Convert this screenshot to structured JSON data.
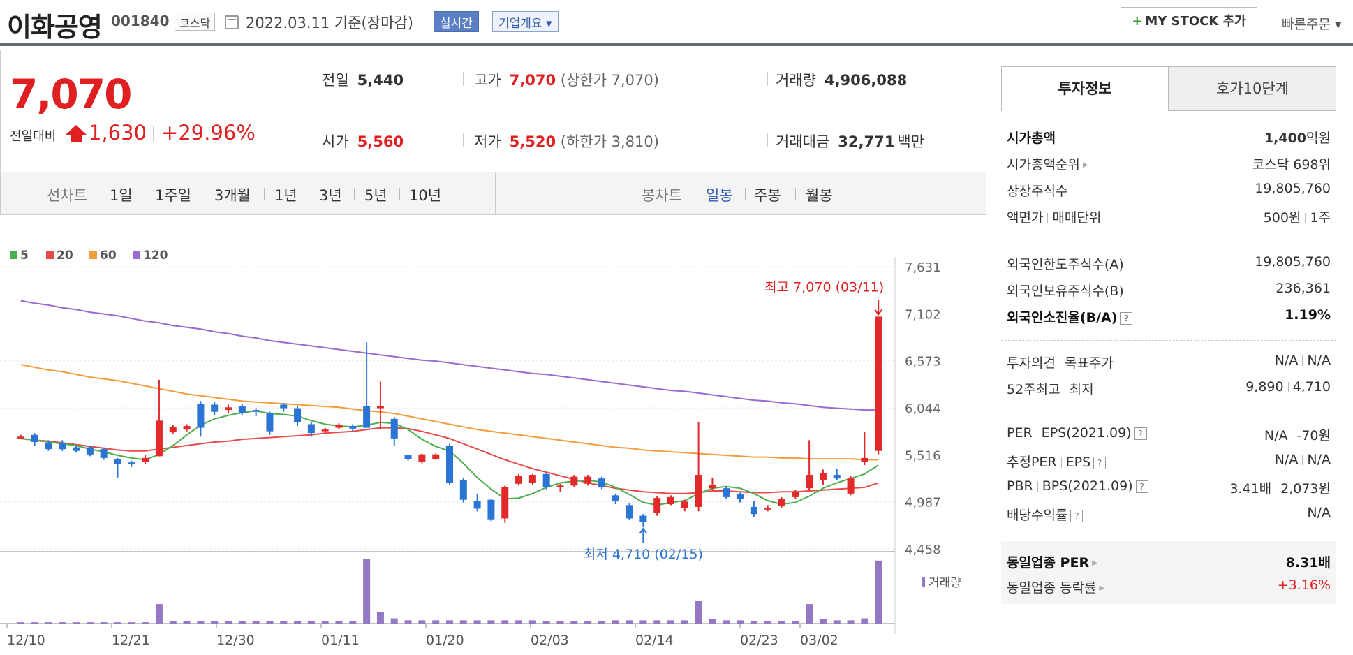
{
  "header": {
    "name": "이화공영",
    "code": "001840",
    "market": "코스닥",
    "date": "2022.03.11  기준(장마감)",
    "realtime": "실시간",
    "overview": "기업개요 ▾",
    "mystock": "MY STOCK 추가",
    "mystock_plus": "+",
    "quick_order": "빠른주문 ▾"
  },
  "price": {
    "current": "7,070",
    "diff_label": "전일대비",
    "diff": "1,630",
    "pct": "+29.96%"
  },
  "quotes": {
    "prev_label": "전일",
    "prev": "5,440",
    "high_label": "고가",
    "high": "7,070",
    "upper_limit": "(상한가 7,070)",
    "volume_label": "거래량",
    "volume": "4,906,088",
    "open_label": "시가",
    "open": "5,560",
    "low_label": "저가",
    "low": "5,520",
    "lower_limit": "(하한가 3,810)",
    "amount_label": "거래대금",
    "amount": "32,771",
    "amount_unit": "백만"
  },
  "chart_tabs": {
    "line_label": "선차트",
    "periods": [
      "1일",
      "1주일",
      "3개월",
      "1년",
      "3년",
      "5년",
      "10년"
    ],
    "candle_label": "봉차트",
    "candles": [
      "일봉",
      "주봉",
      "월봉"
    ]
  },
  "chart_data": {
    "type": "candlestick",
    "legend": [
      "5",
      "20",
      "60",
      "120"
    ],
    "ma_colors": [
      "#4caf50",
      "#e84a4a",
      "#f29c3a",
      "#9a6ad0"
    ],
    "y_ticks": [
      "7,631",
      "7,102",
      "6,573",
      "6,044",
      "5,516",
      "4,987",
      "4,458"
    ],
    "ylim": [
      4458,
      7631
    ],
    "x_ticks": [
      "12/10",
      "12/21",
      "12/30",
      "01/11",
      "01/20",
      "02/03",
      "02/14",
      "02/23",
      "03/02"
    ],
    "high_annotation": "최고 7,070 (03/11)",
    "low_annotation": "최저 4,710 (02/15)",
    "volume_label": "거래량",
    "candles": [
      [
        5700,
        5720,
        5690,
        5740
      ],
      [
        5740,
        5660,
        5620,
        5760
      ],
      [
        5650,
        5580,
        5560,
        5680
      ],
      [
        5640,
        5580,
        5560,
        5680
      ],
      [
        5600,
        5560,
        5540,
        5620
      ],
      [
        5600,
        5520,
        5500,
        5620
      ],
      [
        5580,
        5480,
        5460,
        5600
      ],
      [
        5470,
        5410,
        5260,
        5480
      ],
      [
        5430,
        5420,
        5380,
        5450
      ],
      [
        5440,
        5480,
        5410,
        5510
      ],
      [
        5500,
        5900,
        5500,
        6360
      ],
      [
        5770,
        5830,
        5750,
        5850
      ],
      [
        5800,
        5840,
        5780,
        5860
      ],
      [
        6090,
        5820,
        5720,
        6120
      ],
      [
        6080,
        6000,
        5960,
        6110
      ],
      [
        6020,
        6050,
        5980,
        6080
      ],
      [
        6060,
        5990,
        5960,
        6090
      ],
      [
        6020,
        6000,
        5950,
        6040
      ],
      [
        5980,
        5780,
        5740,
        6000
      ],
      [
        6080,
        6040,
        6000,
        6100
      ],
      [
        6040,
        5880,
        5840,
        6060
      ],
      [
        5860,
        5760,
        5720,
        5880
      ],
      [
        5780,
        5800,
        5760,
        5820
      ],
      [
        5820,
        5850,
        5800,
        5870
      ],
      [
        5840,
        5810,
        5780,
        5860
      ],
      [
        6060,
        5820,
        5820,
        6780
      ],
      [
        6040,
        6060,
        5800,
        6340
      ],
      [
        5920,
        5700,
        5620,
        5940
      ],
      [
        5510,
        5470,
        5450,
        5520
      ],
      [
        5440,
        5520,
        5420,
        5530
      ],
      [
        5470,
        5520,
        5460,
        5530
      ],
      [
        5620,
        5200,
        5180,
        5640
      ],
      [
        5230,
        5010,
        4980,
        5260
      ],
      [
        5000,
        4910,
        4880,
        5080
      ],
      [
        5010,
        4790,
        4770,
        5020
      ],
      [
        4800,
        5150,
        4750,
        5170
      ],
      [
        5190,
        5280,
        5170,
        5300
      ],
      [
        5200,
        5290,
        5180,
        5300
      ],
      [
        5300,
        5150,
        5130,
        5310
      ],
      [
        5160,
        5170,
        5100,
        5190
      ],
      [
        5170,
        5270,
        5150,
        5290
      ],
      [
        5190,
        5270,
        5170,
        5290
      ],
      [
        5250,
        5150,
        5130,
        5270
      ],
      [
        5060,
        5000,
        4960,
        5080
      ],
      [
        4950,
        4800,
        4780,
        4970
      ],
      [
        4830,
        4760,
        4710,
        4850
      ],
      [
        4860,
        5030,
        4830,
        5050
      ],
      [
        4960,
        5040,
        4950,
        5060
      ],
      [
        4920,
        4990,
        4880,
        5010
      ],
      [
        4930,
        5290,
        4880,
        5880
      ],
      [
        5140,
        5180,
        5120,
        5260
      ],
      [
        5140,
        5040,
        5020,
        5150
      ],
      [
        5070,
        5020,
        4980,
        5090
      ],
      [
        4930,
        4850,
        4820,
        5000
      ],
      [
        4900,
        4920,
        4880,
        4950
      ],
      [
        4940,
        5020,
        4920,
        5040
      ],
      [
        5040,
        5100,
        5020,
        5120
      ],
      [
        5140,
        5290,
        5120,
        5680
      ],
      [
        5230,
        5310,
        5180,
        5350
      ],
      [
        5290,
        5250,
        5230,
        5360
      ],
      [
        5080,
        5250,
        5060,
        5280
      ],
      [
        5440,
        5480,
        5400,
        5770
      ],
      [
        5560,
        7070,
        5520,
        7070
      ]
    ],
    "volumes": [
      0.02,
      0.02,
      0.02,
      0.02,
      0.02,
      0.02,
      0.02,
      0.02,
      0.02,
      0.02,
      0.3,
      0.04,
      0.04,
      0.04,
      0.04,
      0.04,
      0.04,
      0.04,
      0.04,
      0.04,
      0.04,
      0.04,
      0.04,
      0.04,
      0.04,
      1.0,
      0.18,
      0.08,
      0.05,
      0.05,
      0.05,
      0.05,
      0.05,
      0.05,
      0.05,
      0.05,
      0.05,
      0.05,
      0.04,
      0.04,
      0.04,
      0.04,
      0.04,
      0.05,
      0.05,
      0.05,
      0.05,
      0.05,
      0.05,
      0.35,
      0.07,
      0.05,
      0.05,
      0.04,
      0.04,
      0.04,
      0.04,
      0.3,
      0.07,
      0.05,
      0.05,
      0.08,
      0.97
    ],
    "ma5": [
      5700,
      5680,
      5660,
      5640,
      5620,
      5580,
      5550,
      5510,
      5480,
      5460,
      5520,
      5620,
      5740,
      5850,
      5920,
      5960,
      5990,
      6010,
      5980,
      5970,
      5950,
      5900,
      5860,
      5840,
      5830,
      5850,
      5880,
      5870,
      5800,
      5690,
      5610,
      5560,
      5420,
      5260,
      5130,
      5020,
      5030,
      5080,
      5150,
      5200,
      5220,
      5230,
      5210,
      5150,
      5070,
      4980,
      4950,
      4980,
      5000,
      5080,
      5140,
      5160,
      5140,
      5080,
      5000,
      4960,
      4980,
      5050,
      5140,
      5200,
      5250,
      5300,
      5400
    ],
    "ma20": [
      5700,
      5680,
      5670,
      5650,
      5630,
      5610,
      5590,
      5570,
      5560,
      5560,
      5580,
      5600,
      5620,
      5640,
      5660,
      5670,
      5690,
      5700,
      5710,
      5720,
      5730,
      5740,
      5760,
      5770,
      5780,
      5800,
      5820,
      5820,
      5810,
      5780,
      5740,
      5700,
      5640,
      5580,
      5520,
      5460,
      5410,
      5360,
      5320,
      5280,
      5240,
      5200,
      5170,
      5140,
      5120,
      5100,
      5090,
      5080,
      5080,
      5090,
      5110,
      5110,
      5100,
      5090,
      5090,
      5100,
      5100,
      5110,
      5120,
      5130,
      5140,
      5150,
      5200
    ],
    "ma60": [
      6530,
      6500,
      6470,
      6450,
      6420,
      6390,
      6370,
      6350,
      6320,
      6290,
      6260,
      6230,
      6200,
      6180,
      6160,
      6140,
      6120,
      6110,
      6100,
      6090,
      6080,
      6070,
      6060,
      6050,
      6030,
      6010,
      6000,
      5980,
      5950,
      5920,
      5890,
      5860,
      5830,
      5800,
      5780,
      5760,
      5740,
      5720,
      5700,
      5680,
      5660,
      5640,
      5620,
      5600,
      5590,
      5570,
      5560,
      5550,
      5540,
      5530,
      5520,
      5510,
      5500,
      5490,
      5490,
      5480,
      5480,
      5470,
      5470,
      5470,
      5470,
      5460,
      5460
    ],
    "ma120": [
      7250,
      7220,
      7200,
      7170,
      7150,
      7120,
      7100,
      7080,
      7050,
      7020,
      7000,
      6970,
      6950,
      6930,
      6900,
      6880,
      6850,
      6830,
      6800,
      6780,
      6760,
      6740,
      6720,
      6700,
      6680,
      6660,
      6640,
      6620,
      6600,
      6580,
      6570,
      6550,
      6530,
      6510,
      6490,
      6470,
      6450,
      6430,
      6420,
      6400,
      6380,
      6360,
      6340,
      6320,
      6300,
      6280,
      6260,
      6240,
      6230,
      6210,
      6190,
      6170,
      6150,
      6130,
      6120,
      6100,
      6090,
      6070,
      6050,
      6040,
      6030,
      6020,
      6020
    ]
  },
  "info": {
    "tab_active": "투자정보",
    "tab_other": "호가10단계",
    "market_cap_label": "시가총액",
    "market_cap_value": "1,400",
    "market_cap_unit": "억원",
    "rank_label": "시가총액순위",
    "rank_value": "코스닥 698위",
    "shares_label": "상장주식수",
    "shares_value": "19,805,760",
    "face_label": "액면가",
    "unit_label": "매매단위",
    "face_value": "500원",
    "unit_value": "1주",
    "foreign_limit_label": "외국인한도주식수(A)",
    "foreign_limit_value": "19,805,760",
    "foreign_hold_label": "외국인보유주식수(B)",
    "foreign_hold_value": "236,361",
    "foreign_ratio_label": "외국인소진율(B/A)",
    "foreign_ratio_value": "1.19%",
    "opinion_label": "투자의견",
    "target_label": "목표주가",
    "opinion_value": "N/A",
    "target_value": "N/A",
    "w52_high_label": "52주최고",
    "w52_low_label": "최저",
    "w52_high_value": "9,890",
    "w52_low_value": "4,710",
    "per_label": "PER",
    "eps_label": "EPS(2021.09)",
    "per_value": "N/A",
    "eps_value": "-70원",
    "est_per_label": "추정PER",
    "est_eps_label": "EPS",
    "est_per_value": "N/A",
    "est_eps_value": "N/A",
    "pbr_label": "PBR",
    "bps_label": "BPS(2021.09)",
    "pbr_value": "3.41배",
    "bps_value": "2,073원",
    "div_label": "배당수익률",
    "div_value": "N/A",
    "peer_per_label": "동일업종 PER",
    "peer_per_value": "8.31배",
    "peer_rate_label": "동일업종 등락률",
    "peer_rate_value": "+3.16%"
  }
}
